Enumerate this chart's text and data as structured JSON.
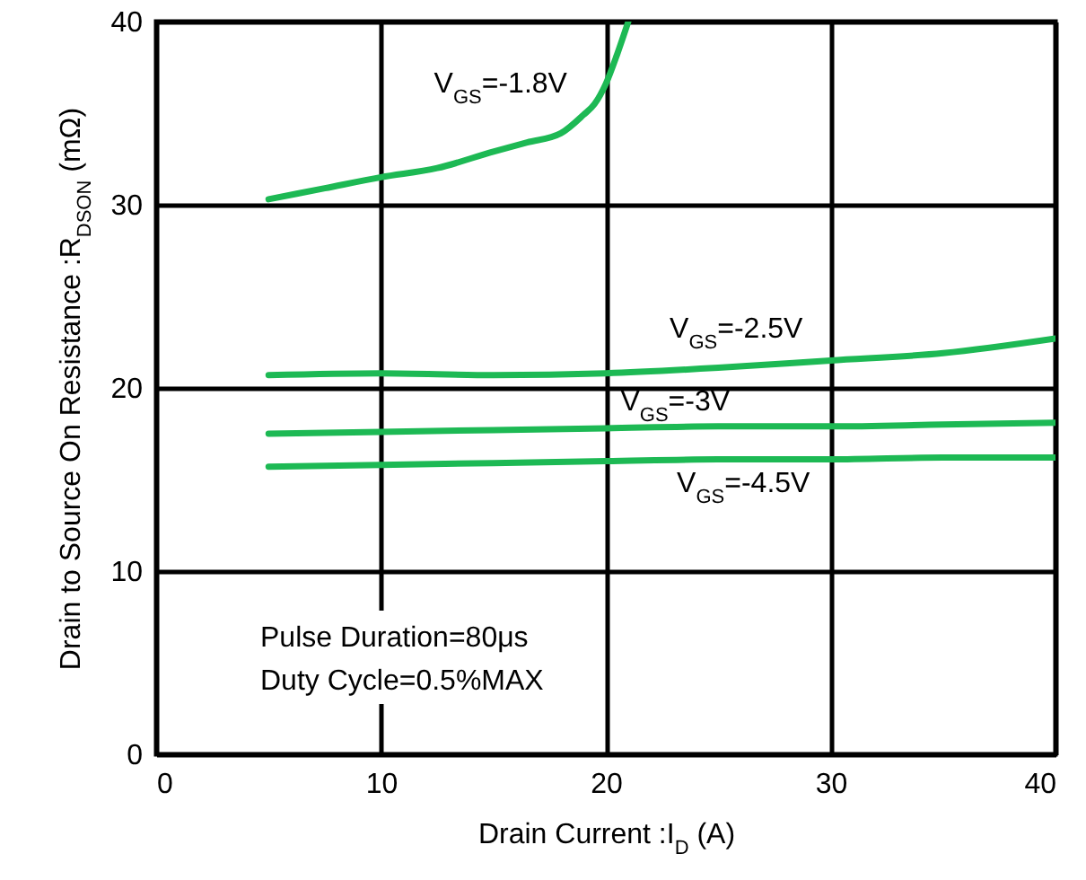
{
  "chart_data": {
    "type": "line",
    "xlabel": "Drain Current :I$_{D}$ (A)",
    "ylabel": "Drain to Source On Resistance :R$_{DSON}$ (mΩ)",
    "xlim": [
      0,
      40
    ],
    "xticks": [
      0,
      10,
      20,
      30,
      40
    ],
    "ylim": [
      0,
      40
    ],
    "yticks": [
      0,
      10,
      20,
      30,
      40
    ],
    "grid": true,
    "legend": false,
    "series": [
      {
        "name": "V$_{GS}$=-1.8V",
        "color": "#1db954",
        "x": [
          5,
          7.5,
          10,
          12.5,
          15,
          16.5,
          18,
          19,
          19.5,
          20,
          20.5,
          21
        ],
        "values": [
          30.3,
          30.9,
          31.5,
          32.0,
          32.9,
          33.4,
          33.9,
          34.9,
          35.5,
          36.6,
          38.2,
          40
        ]
      },
      {
        "name": "V$_{GS}$=-2.5V",
        "color": "#1db954",
        "x": [
          5,
          10,
          15,
          20,
          25,
          30,
          35,
          40
        ],
        "values": [
          20.7,
          20.8,
          20.7,
          20.8,
          21.1,
          21.5,
          21.9,
          22.7
        ]
      },
      {
        "name": "V$_{GS}$=-3V",
        "color": "#1db954",
        "x": [
          5,
          10,
          15,
          20,
          25,
          30,
          35,
          40
        ],
        "values": [
          17.5,
          17.6,
          17.7,
          17.8,
          17.9,
          17.9,
          18.0,
          18.1
        ]
      },
      {
        "name": "V$_{GS}$=-4.5V",
        "color": "#1db954",
        "x": [
          5,
          10,
          15,
          20,
          25,
          30,
          35,
          40
        ],
        "values": [
          15.7,
          15.8,
          15.9,
          16.0,
          16.1,
          16.1,
          16.2,
          16.2
        ]
      }
    ],
    "annotations": [
      "Pulse Duration=80μs",
      "Duty Cycle=0.5%MAX"
    ]
  }
}
